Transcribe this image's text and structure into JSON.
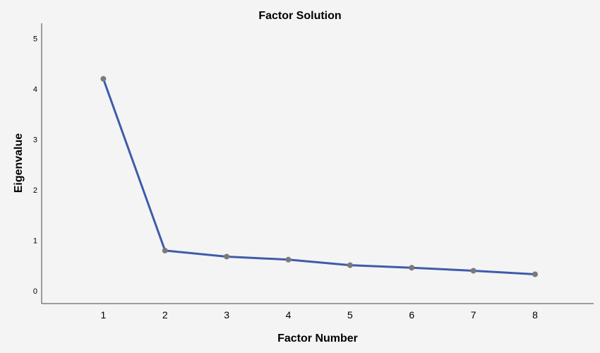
{
  "chart_data": {
    "type": "line",
    "title": "Factor Solution",
    "xlabel": "Factor Number",
    "ylabel": "Eigenvalue",
    "x": [
      1,
      2,
      3,
      4,
      5,
      6,
      7,
      8
    ],
    "x_tick_labels": [
      "1",
      "2",
      "3",
      "4",
      "5",
      "6",
      "7",
      "8"
    ],
    "y_ticks": [
      0,
      1,
      2,
      3,
      4,
      5
    ],
    "y_tick_labels": [
      "0",
      "1",
      "2",
      "3",
      "4",
      "5"
    ],
    "ylim": [
      -0.25,
      5.3
    ],
    "xlim": [
      0.0,
      8.95
    ],
    "grid": false,
    "series": [
      {
        "values": [
          4.2,
          0.8,
          0.68,
          0.62,
          0.51,
          0.46,
          0.4,
          0.33
        ],
        "line_color": "#3f5ba9",
        "marker_color": "#7a7a7a"
      }
    ],
    "background_color": "#f4f4f5",
    "axis_color": "#444444"
  }
}
